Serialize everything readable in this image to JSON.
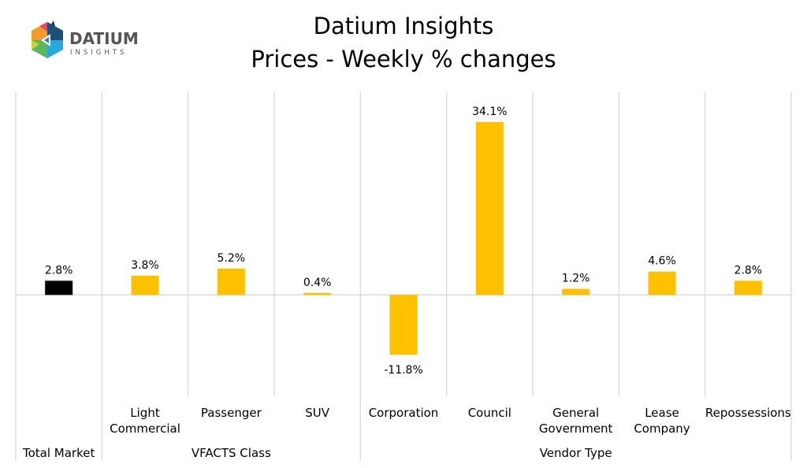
{
  "logo": {
    "name": "DATIUM",
    "tagline": "INSIGHTS"
  },
  "chart_data": {
    "type": "bar",
    "title": "Datium Insights",
    "subtitle": "Prices - Weekly % changes",
    "categories": [
      "",
      "Light Commercial",
      "Passenger",
      "SUV",
      "Corporation",
      "Council",
      "General Government",
      "Lease Company",
      "Repossessions"
    ],
    "category_lines": [
      [],
      [
        "Light",
        "Commercial"
      ],
      [
        "Passenger"
      ],
      [
        "SUV"
      ],
      [
        "Corporation"
      ],
      [
        "Council"
      ],
      [
        "General",
        "Government"
      ],
      [
        "Lease",
        "Company"
      ],
      [
        "Repossessions"
      ]
    ],
    "groups": [
      {
        "label": "Total Market",
        "span": 1
      },
      {
        "label": "VFACTS Class",
        "span": 3
      },
      {
        "label": "Vendor Type",
        "span": 5
      }
    ],
    "values": [
      2.8,
      3.8,
      5.2,
      0.4,
      -11.8,
      34.1,
      1.2,
      4.6,
      2.8
    ],
    "data_labels": [
      "2.8%",
      "3.8%",
      "5.2%",
      "0.4%",
      "-11.8%",
      "34.1%",
      "1.2%",
      "4.6%",
      "2.8%"
    ],
    "ylim": [
      -20,
      40
    ],
    "grid": false,
    "legend": "none",
    "colors": {
      "total": "#000000",
      "default": "#FFC000",
      "axis": "#D9D9D9"
    }
  }
}
